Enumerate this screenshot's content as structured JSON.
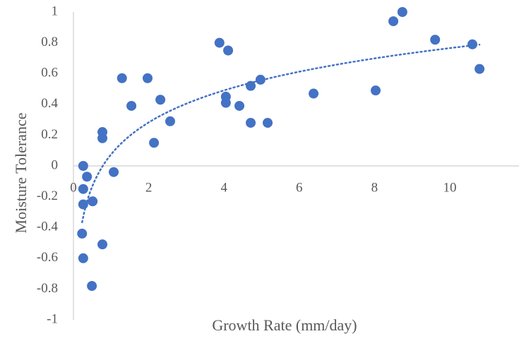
{
  "chart_data": {
    "type": "scatter",
    "x_label": "Growth Rate (mm/day)",
    "y_label": "Moisture Tolerance",
    "xlim": [
      0,
      12
    ],
    "xticks": [
      0,
      2,
      4,
      6,
      8,
      10
    ],
    "ylim": [
      -1,
      1
    ],
    "yticks": [
      1,
      0.8,
      0.6,
      0.4,
      0.2,
      0,
      -0.2,
      -0.4,
      -0.6,
      -0.8,
      -1
    ],
    "grid": false,
    "trendline": {
      "type": "logarithmic",
      "color": "#4472c4"
    },
    "series": [
      {
        "color": "#4472c4",
        "x": [
          0.26,
          0.26,
          0.36,
          0.26,
          0.51,
          0.23,
          0.26,
          0.49,
          0.77,
          0.77,
          0.77,
          1.07,
          1.29,
          1.54,
          1.97,
          2.14,
          2.31,
          2.57,
          3.88,
          4.11,
          4.05,
          4.05,
          4.41,
          4.71,
          4.97,
          4.71,
          5.16,
          6.38,
          8.03,
          8.5,
          8.74,
          9.61,
          10.6,
          10.79
        ],
        "values": [
          0.0,
          -0.15,
          -0.07,
          -0.25,
          -0.23,
          -0.44,
          -0.6,
          -0.78,
          -0.51,
          0.22,
          0.18,
          -0.04,
          0.57,
          0.39,
          0.57,
          0.15,
          0.43,
          0.29,
          0.8,
          0.75,
          0.45,
          0.41,
          0.39,
          0.52,
          0.56,
          0.28,
          0.28,
          0.47,
          0.49,
          0.94,
          1.0,
          0.82,
          0.79,
          0.63
        ]
      }
    ]
  }
}
